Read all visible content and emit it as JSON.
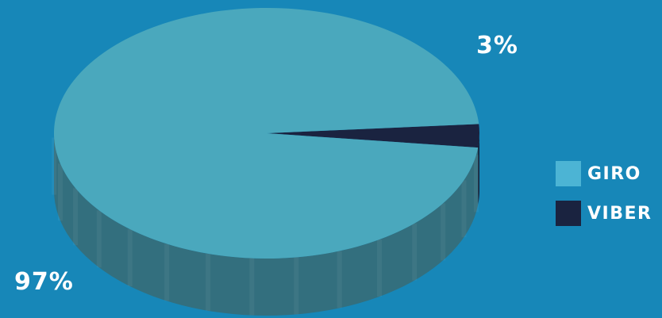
{
  "chart_data": {
    "type": "pie",
    "slices": [
      {
        "label": "GIRO",
        "value": 97,
        "display": "97%",
        "color": "#4aa8bd",
        "legend_color": "#4cb4d4",
        "side_color": "#336f7e"
      },
      {
        "label": "VIBER",
        "value": 3,
        "display": "3%",
        "color": "#1a2340",
        "legend_color": "#1a2340",
        "side_color": "#141b31"
      }
    ]
  }
}
